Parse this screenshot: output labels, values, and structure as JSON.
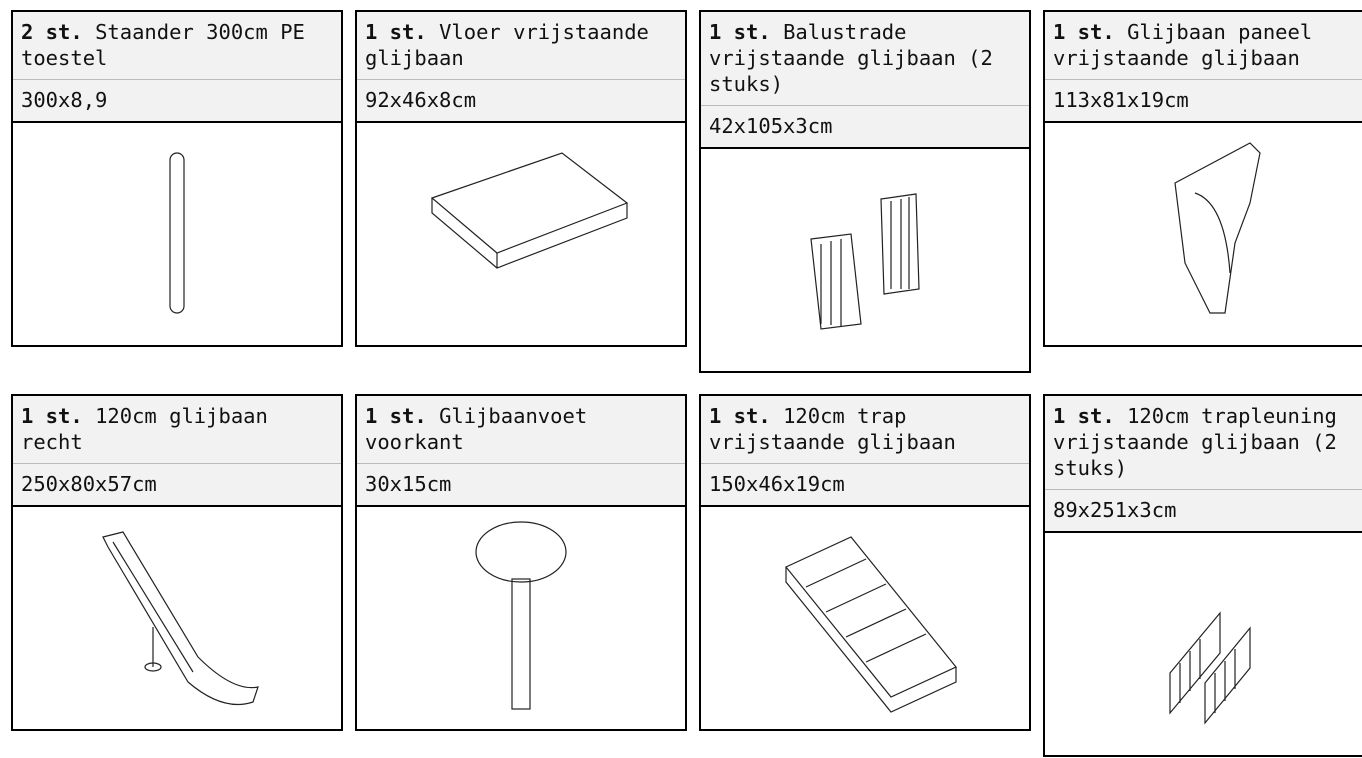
{
  "cards": [
    {
      "qty": "2 st.",
      "name": "Staander 300cm PE toestel",
      "dims": "300x8,9"
    },
    {
      "qty": "1 st.",
      "name": "Vloer vrijstaande glijbaan",
      "dims": "92x46x8cm"
    },
    {
      "qty": "1 st.",
      "name": "Balustrade vrijstaande glijbaan (2 stuks)",
      "dims": "42x105x3cm"
    },
    {
      "qty": "1 st.",
      "name": "Glijbaan paneel vrijstaande glijbaan",
      "dims": "113x81x19cm"
    },
    {
      "qty": "1 st.",
      "name": "120cm glijbaan recht",
      "dims": "250x80x57cm"
    },
    {
      "qty": "1 st.",
      "name": "Glijbaanvoet voorkant",
      "dims": "30x15cm"
    },
    {
      "qty": "1 st.",
      "name": "120cm trap vrijstaande glijbaan",
      "dims": "150x46x19cm"
    },
    {
      "qty": "1 st.",
      "name": "120cm trapleuning vrijstaande glijbaan (2 stuks)",
      "dims": "89x251x3cm"
    }
  ]
}
